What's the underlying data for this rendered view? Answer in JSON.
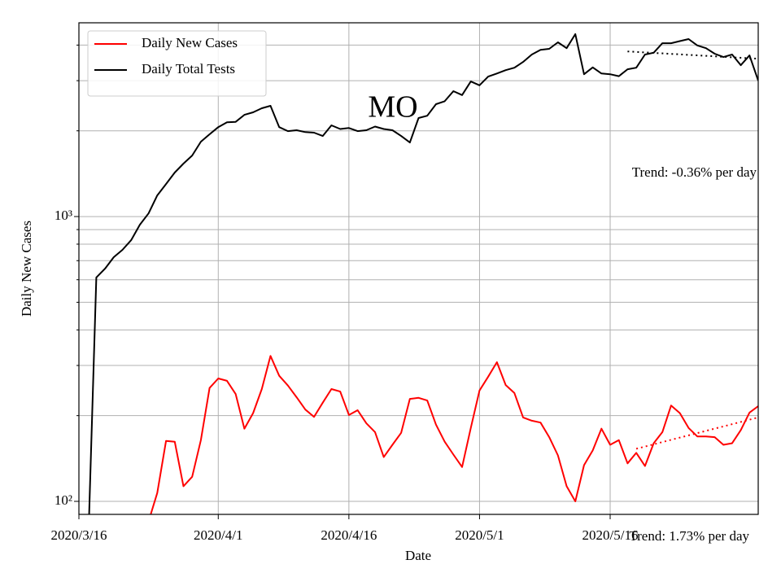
{
  "chart_data": {
    "type": "line",
    "title": "MO",
    "xlabel": "Date",
    "ylabel": "Daily New Cases",
    "ylog": true,
    "grid": true,
    "legend": "upper left",
    "x": [
      "2020/3/16",
      "2020/3/17",
      "2020/3/18",
      "2020/3/19",
      "2020/3/20",
      "2020/3/21",
      "2020/3/22",
      "2020/3/23",
      "2020/3/24",
      "2020/3/25",
      "2020/3/26",
      "2020/3/27",
      "2020/3/28",
      "2020/3/29",
      "2020/3/30",
      "2020/3/31",
      "2020/4/1",
      "2020/4/2",
      "2020/4/3",
      "2020/4/4",
      "2020/4/5",
      "2020/4/6",
      "2020/4/7",
      "2020/4/8",
      "2020/4/9",
      "2020/4/10",
      "2020/4/11",
      "2020/4/12",
      "2020/4/13",
      "2020/4/14",
      "2020/4/15",
      "2020/4/16",
      "2020/4/17",
      "2020/4/18",
      "2020/4/19",
      "2020/4/20",
      "2020/4/21",
      "2020/4/22",
      "2020/4/23",
      "2020/4/24",
      "2020/4/25",
      "2020/4/26",
      "2020/4/27",
      "2020/4/28",
      "2020/4/29",
      "2020/4/30",
      "2020/5/1",
      "2020/5/2",
      "2020/5/3",
      "2020/5/4",
      "2020/5/5",
      "2020/5/6",
      "2020/5/7",
      "2020/5/8",
      "2020/5/9",
      "2020/5/10",
      "2020/5/11",
      "2020/5/12",
      "2020/5/13",
      "2020/5/14",
      "2020/5/15",
      "2020/5/16",
      "2020/5/17",
      "2020/5/18",
      "2020/5/19",
      "2020/5/20",
      "2020/5/21",
      "2020/5/22",
      "2020/5/23",
      "2020/5/24",
      "2020/5/25",
      "2020/5/26",
      "2020/5/27",
      "2020/5/28",
      "2020/5/29",
      "2020/5/30",
      "2020/5/31",
      "2020/6/1",
      "2020/6/2"
    ],
    "series": [
      {
        "name": "Daily New Cases",
        "color": "#ff0000",
        "values": [
          null,
          null,
          null,
          null,
          null,
          null,
          null,
          null,
          85,
          107,
          163,
          162,
          113,
          122,
          164,
          250,
          270,
          265,
          238,
          180,
          204,
          248,
          324,
          276,
          255,
          232,
          210,
          198,
          222,
          248,
          243,
          201,
          209,
          188,
          175,
          143,
          158,
          174,
          229,
          231,
          226,
          186,
          162,
          146,
          132,
          181,
          245,
          274,
          308,
          256,
          240,
          197,
          192,
          189,
          168,
          145,
          113,
          100,
          134,
          151,
          180,
          158,
          164,
          136,
          148,
          133,
          160,
          175,
          217,
          204,
          181,
          169,
          169,
          168,
          158,
          160,
          178,
          205,
          216
        ]
      },
      {
        "name": "Daily Total Tests",
        "color": "#000000",
        "values": [
          null,
          60,
          611,
          656,
          720,
          764,
          826,
          936,
          1026,
          1186,
          1301,
          1427,
          1534,
          1638,
          1832,
          1944,
          2061,
          2144,
          2150,
          2276,
          2322,
          2400,
          2448,
          2061,
          1995,
          2010,
          1980,
          1970,
          1918,
          2090,
          2030,
          2045,
          1995,
          2010,
          2070,
          2030,
          2010,
          1918,
          1820,
          2218,
          2260,
          2480,
          2540,
          2756,
          2670,
          2980,
          2890,
          3100,
          3180,
          3265,
          3330,
          3490,
          3706,
          3850,
          3880,
          4090,
          3900,
          4370,
          3160,
          3340,
          3180,
          3160,
          3110,
          3290,
          3330,
          3706,
          3760,
          4060,
          4060,
          4130,
          4200,
          3990,
          3900,
          3730,
          3630,
          3706,
          3400,
          3680,
          3000
        ]
      }
    ],
    "trend_lines": [
      {
        "color": "#ff0000",
        "style": "dotted",
        "x": [
          "2020/5/19",
          "2020/6/2"
        ],
        "values": [
          153,
          197
        ],
        "label": "Trend: 1.73% per day"
      },
      {
        "color": "#000000",
        "style": "dotted",
        "x": [
          "2020/5/18",
          "2020/6/2"
        ],
        "values": [
          3800,
          3580
        ],
        "label": "Trend: -0.36% per day"
      }
    ],
    "xlim": [
      "2020/3/16",
      "2020/6/2"
    ],
    "xticks": [
      "2020/3/16",
      "2020/4/1",
      "2020/4/16",
      "2020/5/1",
      "2020/5/16"
    ],
    "ylim": [
      90,
      4790
    ],
    "yticks": [
      {
        "value": 100,
        "label": "10²"
      },
      {
        "value": 1000,
        "label": "10³"
      }
    ],
    "yminorticks": [
      200,
      300,
      400,
      500,
      600,
      700,
      800,
      900,
      2000,
      3000,
      4000
    ]
  }
}
